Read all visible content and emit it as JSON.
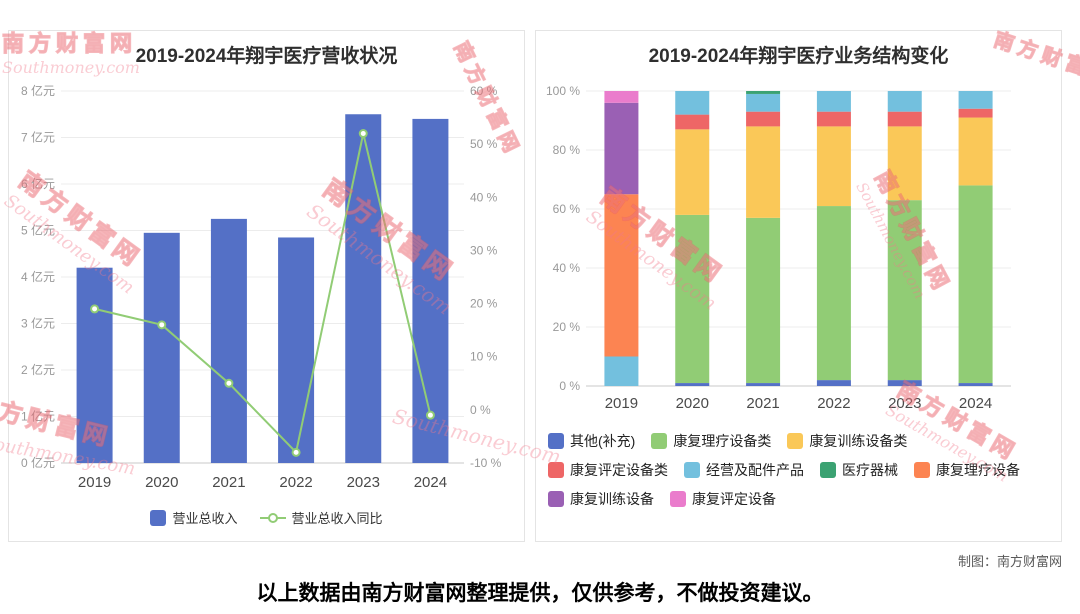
{
  "page": {
    "footer_note": "以上数据由南方财富网整理提供，仅供参考，不做投资建议。",
    "credit": "制图：南方财富网",
    "watermark_cn": "南方财富网",
    "watermark_en": "Southmoney.com"
  },
  "chart_data": [
    {
      "type": "bar",
      "title": "2019-2024年翔宇医疗营收状况",
      "categories": [
        "2019",
        "2020",
        "2021",
        "2022",
        "2023",
        "2024"
      ],
      "y_left": {
        "min": 0,
        "max": 8,
        "step": 1,
        "label_suffix": " 亿元"
      },
      "y_right": {
        "min": -10,
        "max": 60,
        "step": 10,
        "label_suffix": " %"
      },
      "grid": true,
      "legend_position": "bottom",
      "series": [
        {
          "name": "营业总收入",
          "type": "bar",
          "unit": "亿元",
          "color": "#5470c6",
          "values": [
            4.2,
            4.95,
            5.25,
            4.85,
            7.5,
            7.4
          ]
        },
        {
          "name": "营业总收入同比",
          "type": "line",
          "unit": "%",
          "color": "#91cc75",
          "values": [
            19,
            16,
            5,
            -8,
            52,
            -1
          ]
        }
      ]
    },
    {
      "type": "stacked-bar",
      "title": "2019-2024年翔宇医疗业务结构变化",
      "categories": [
        "2019",
        "2020",
        "2021",
        "2022",
        "2023",
        "2024"
      ],
      "y": {
        "min": 0,
        "max": 100,
        "step": 20,
        "label_suffix": " %"
      },
      "unit": "%",
      "grid": true,
      "legend_position": "bottom",
      "series": [
        {
          "name": "其他(补充)",
          "color": "#5470c6",
          "values": [
            0,
            1,
            1,
            2,
            2,
            1
          ]
        },
        {
          "name": "康复理疗设备类",
          "color": "#91cc75",
          "values": [
            0,
            57,
            56,
            59,
            61,
            67
          ]
        },
        {
          "name": "康复训练设备类",
          "color": "#fac858",
          "values": [
            0,
            29,
            31,
            27,
            25,
            23
          ]
        },
        {
          "name": "康复评定设备类",
          "color": "#ee6666",
          "values": [
            0,
            5,
            5,
            5,
            5,
            3
          ]
        },
        {
          "name": "经营及配件产品",
          "color": "#73c0de",
          "values": [
            10,
            8,
            6,
            7,
            7,
            6
          ]
        },
        {
          "name": "医疗器械",
          "color": "#3ba272",
          "values": [
            0,
            0,
            1,
            0,
            0,
            0
          ]
        },
        {
          "name": "康复理疗设备",
          "color": "#fc8452",
          "values": [
            55,
            0,
            0,
            0,
            0,
            0
          ]
        },
        {
          "name": "康复训练设备",
          "color": "#9a60b4",
          "values": [
            31,
            0,
            0,
            0,
            0,
            0
          ]
        },
        {
          "name": "康复评定设备",
          "color": "#ea7ccc",
          "values": [
            4,
            0,
            0,
            0,
            0,
            0
          ]
        }
      ]
    }
  ]
}
